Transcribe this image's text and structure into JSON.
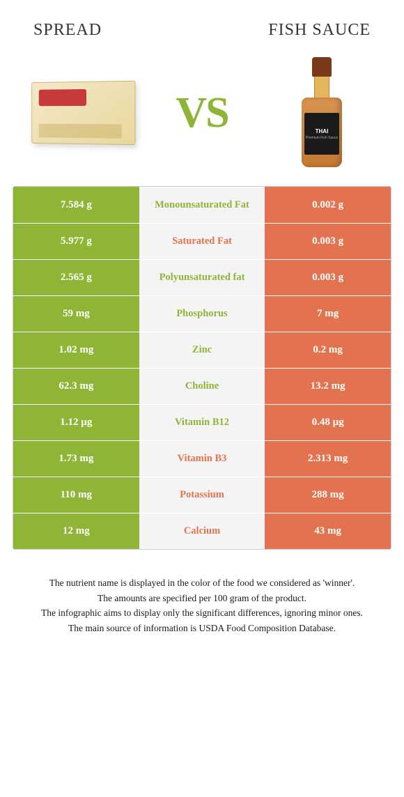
{
  "header": {
    "left_title": "Spread",
    "right_title": "Fish sauce",
    "vs_label": "VS"
  },
  "colors": {
    "left": "#8fb536",
    "right": "#e3734e",
    "mid_bg": "#f4f4f4",
    "border": "#d0d0d0",
    "text": "#1a1a1a"
  },
  "bottle": {
    "brand": "THAI",
    "subtext": "Premium Fish Sauce"
  },
  "rows": [
    {
      "left": "7.584 g",
      "label": "Monounsaturated Fat",
      "right": "0.002 g",
      "winner": "left"
    },
    {
      "left": "5.977 g",
      "label": "Saturated Fat",
      "right": "0.003 g",
      "winner": "right"
    },
    {
      "left": "2.565 g",
      "label": "Polyunsaturated fat",
      "right": "0.003 g",
      "winner": "left"
    },
    {
      "left": "59 mg",
      "label": "Phosphorus",
      "right": "7 mg",
      "winner": "left"
    },
    {
      "left": "1.02 mg",
      "label": "Zinc",
      "right": "0.2 mg",
      "winner": "left"
    },
    {
      "left": "62.3 mg",
      "label": "Choline",
      "right": "13.2 mg",
      "winner": "left"
    },
    {
      "left": "1.12 µg",
      "label": "Vitamin B12",
      "right": "0.48 µg",
      "winner": "left"
    },
    {
      "left": "1.73 mg",
      "label": "Vitamin B3",
      "right": "2.313 mg",
      "winner": "right"
    },
    {
      "left": "110 mg",
      "label": "Potassium",
      "right": "288 mg",
      "winner": "right"
    },
    {
      "left": "12 mg",
      "label": "Calcium",
      "right": "43 mg",
      "winner": "right"
    }
  ],
  "footnotes": [
    "The nutrient name is displayed in the color of the food we considered as 'winner'.",
    "The amounts are specified per 100 gram of the product.",
    "The infographic aims to display only the significant differences, ignoring minor ones.",
    "The main source of information is USDA Food Composition Database."
  ]
}
